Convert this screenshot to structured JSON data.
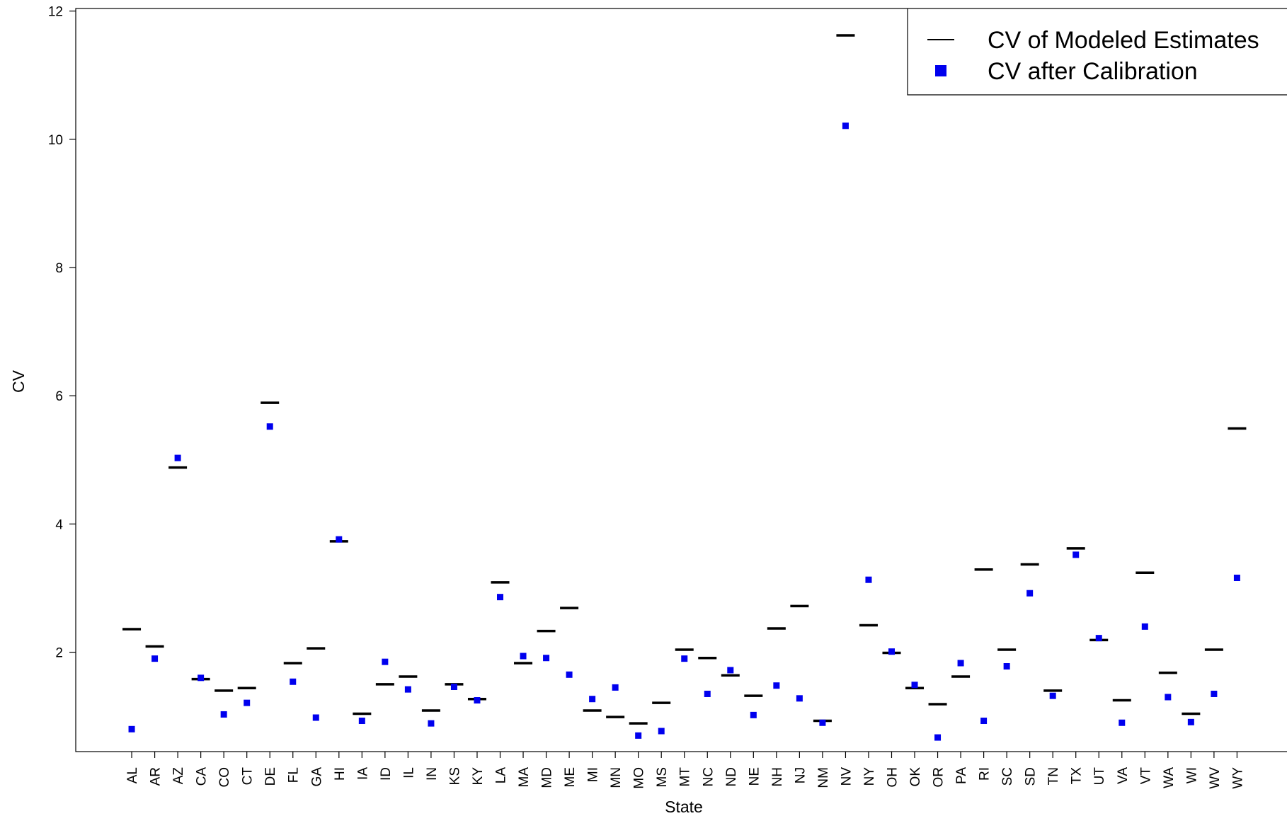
{
  "chart_data": {
    "type": "dot",
    "x_label": "State",
    "y_label": "CV",
    "categories": [
      "AL",
      "AR",
      "AZ",
      "CA",
      "CO",
      "CT",
      "DE",
      "FL",
      "GA",
      "HI",
      "IA",
      "ID",
      "IL",
      "IN",
      "KS",
      "KY",
      "LA",
      "MA",
      "MD",
      "ME",
      "MI",
      "MN",
      "MO",
      "MS",
      "MT",
      "NC",
      "ND",
      "NE",
      "NH",
      "NJ",
      "NM",
      "NV",
      "NY",
      "OH",
      "OK",
      "OR",
      "PA",
      "RI",
      "SC",
      "SD",
      "TN",
      "TX",
      "UT",
      "VA",
      "VT",
      "WA",
      "WI",
      "WV",
      "WY"
    ],
    "series": [
      {
        "name": "CV of Modeled Estimates",
        "color": "#000000",
        "marker": "dash",
        "values": [
          2.36,
          2.09,
          4.88,
          1.58,
          1.4,
          1.44,
          5.89,
          1.83,
          2.06,
          3.73,
          1.04,
          1.5,
          1.62,
          1.09,
          1.5,
          1.27,
          3.09,
          1.83,
          2.33,
          2.69,
          1.09,
          0.99,
          0.89,
          1.21,
          2.04,
          1.91,
          1.64,
          1.32,
          2.37,
          2.72,
          0.93,
          11.62,
          2.42,
          1.99,
          1.44,
          1.19,
          1.62,
          3.29,
          2.04,
          3.37,
          1.4,
          3.62,
          2.19,
          1.25,
          3.24,
          1.68,
          1.04,
          2.04,
          5.49
        ]
      },
      {
        "name": "CV after Calibration",
        "color": "#0000ee",
        "marker": "square",
        "values": [
          0.8,
          1.9,
          5.03,
          1.6,
          1.03,
          1.21,
          5.52,
          1.54,
          0.98,
          3.76,
          0.93,
          1.85,
          1.42,
          0.89,
          1.46,
          1.25,
          2.86,
          1.94,
          1.91,
          1.65,
          1.27,
          1.45,
          0.7,
          0.77,
          1.9,
          1.35,
          1.72,
          1.02,
          1.48,
          1.28,
          0.9,
          10.21,
          3.13,
          2.01,
          1.49,
          0.67,
          1.83,
          0.93,
          1.78,
          2.92,
          1.32,
          3.52,
          2.22,
          0.9,
          2.4,
          1.3,
          0.91,
          1.35,
          3.16
        ]
      }
    ],
    "ylim": [
      0.45,
      12.04
    ],
    "yticks": [
      2,
      4,
      6,
      8,
      10,
      12
    ],
    "legend": "top-right"
  }
}
